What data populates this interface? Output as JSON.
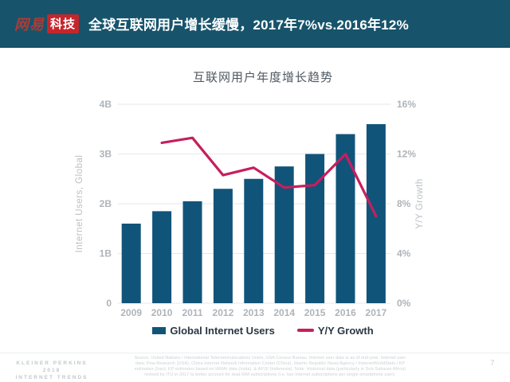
{
  "header": {
    "logo_wangyi": "网易",
    "logo_keji": "科技",
    "title": "全球互联网用户增长缓慢，2017年7%vs.2016年12%"
  },
  "colors": {
    "header_bg": "#17546C",
    "logo_red": "#C5262C",
    "bar": "#11547A",
    "line": "#C51F5E",
    "grid": "#E5E7E9",
    "tick": "#AFB4B9",
    "axis_title": "#BBC0C5"
  },
  "chart_data": {
    "type": "bar",
    "title": "互联网用户年度增长趋势",
    "categories": [
      "2009",
      "2010",
      "2011",
      "2012",
      "2013",
      "2014",
      "2015",
      "2016",
      "2017"
    ],
    "series": [
      {
        "name": "Global Internet Users",
        "type": "bar",
        "axis": "left",
        "unit": "B",
        "values": [
          1.6,
          1.85,
          2.05,
          2.3,
          2.5,
          2.75,
          3.0,
          3.4,
          3.6
        ]
      },
      {
        "name": "Y/Y Growth",
        "type": "line",
        "axis": "right",
        "unit": "%",
        "categories": [
          "2010",
          "2011",
          "2012",
          "2013",
          "2014",
          "2015",
          "2016",
          "2017"
        ],
        "values": [
          12.9,
          13.3,
          10.3,
          10.9,
          9.3,
          9.5,
          12.0,
          7.0
        ]
      }
    ],
    "left_axis": {
      "label": "Internet Users, Global",
      "ticks": [
        "0",
        "1B",
        "2B",
        "3B",
        "4B"
      ],
      "range": [
        0,
        4
      ]
    },
    "right_axis": {
      "label": "Y/Y Growth",
      "ticks": [
        "0%",
        "4%",
        "8%",
        "12%",
        "16%"
      ],
      "range": [
        0,
        16
      ]
    },
    "grid": true,
    "legend_position": "bottom"
  },
  "legend": {
    "bar_label": "Global Internet Users",
    "line_label": "Y/Y Growth"
  },
  "footer": {
    "brand_line1": "KLEINER PERKINS",
    "brand_line2": "2018",
    "brand_line3": "INTERNET TRENDS",
    "source_lines": [
      "Source: United Nations / International Telecommunications Union, USA Census Bureau. Internet user data is as of mid-year. Internet user",
      "data: Pew Research (USA), China Internet Network Information Center (China), Islamic Republic News Agency / InternetWorldStats / KP",
      "estimates (Iran), KP estimates based on IAMAI data (India), & APJII (Indonesia). Note: Historical data (particularly in Sub-Saharan Africa)",
      "revised by ITU in 2017 to better account for dual-SIM subscriptions (i.e. two Internet subscriptions per single smartphone user)."
    ],
    "page_number": "7"
  }
}
